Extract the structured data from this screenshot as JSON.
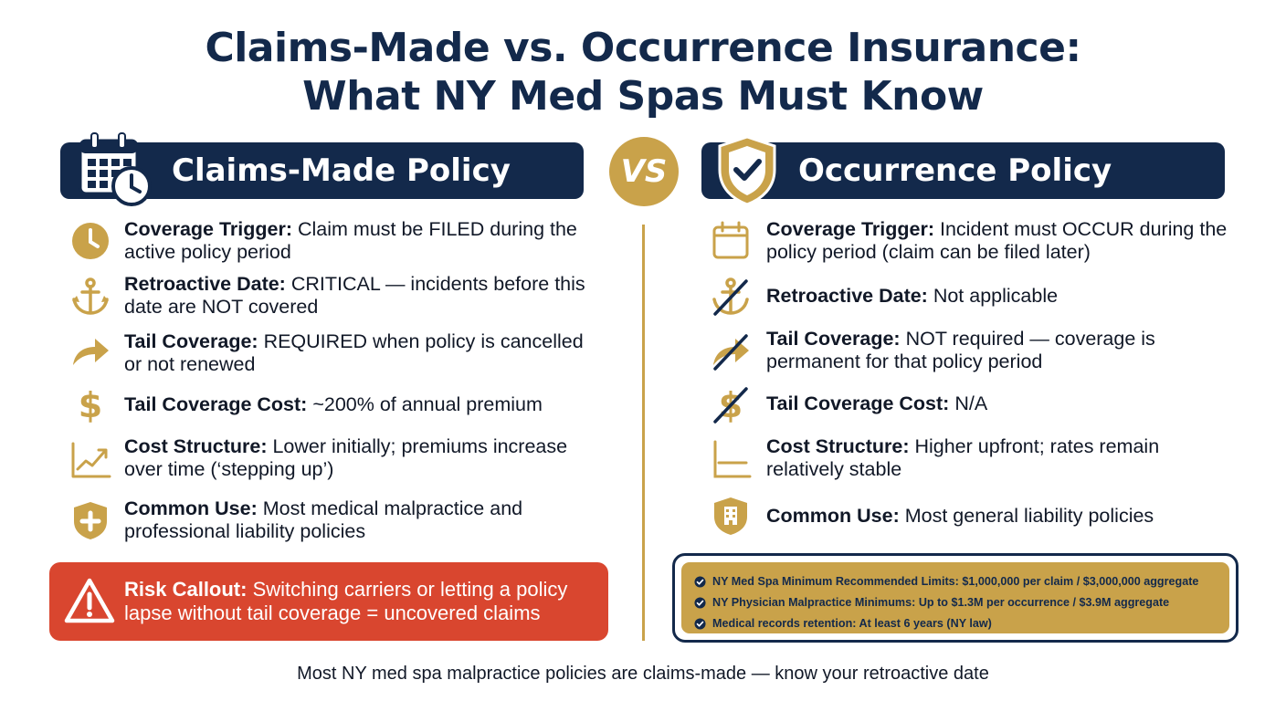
{
  "title": {
    "line1": "Claims-Made vs. Occurrence Insurance:",
    "line2": "What NY Med Spas Must Know"
  },
  "vs_label": "VS",
  "left": {
    "header": "Claims-Made Policy",
    "header_icon": "calendar-clock-icon",
    "items": [
      {
        "label": "Coverage Trigger:",
        "text": "Claim must be FILED during the active policy period",
        "icon": "clock-icon"
      },
      {
        "label": "Retroactive Date:",
        "text": "CRITICAL — incidents before this date are NOT covered",
        "icon": "anchor-icon"
      },
      {
        "label": "Tail Coverage:",
        "text": "REQUIRED when policy is cancelled or not renewed",
        "icon": "arrow-forward-icon"
      },
      {
        "label": "Tail Coverage Cost:",
        "text": "~200% of annual premium",
        "icon": "dollar-icon"
      },
      {
        "label": "Cost Structure:",
        "text": "Lower initially; premiums increase over time (‘stepping up’)",
        "icon": "rising-chart-icon"
      },
      {
        "label": "Common Use:",
        "text": "Most medical malpractice and professional liability policies",
        "icon": "medical-shield-icon"
      }
    ],
    "risk": {
      "label": "Risk Callout:",
      "text": "Switching carriers or letting a policy lapse without tail coverage = uncovered claims",
      "icon": "warning-icon"
    }
  },
  "right": {
    "header": "Occurrence Policy",
    "header_icon": "shield-check-icon",
    "items": [
      {
        "label": "Coverage Trigger:",
        "text": "Incident must OCCUR during the policy period (claim can be filed later)",
        "icon": "calendar-icon"
      },
      {
        "label": "Retroactive Date:",
        "text": "Not applicable",
        "icon": "anchor-crossed-icon"
      },
      {
        "label": "Tail Coverage:",
        "text": "NOT required — coverage is permanent for that policy period",
        "icon": "arrow-crossed-icon"
      },
      {
        "label": "Tail Coverage Cost:",
        "text": "N/A",
        "icon": "dollar-crossed-icon"
      },
      {
        "label": "Cost Structure:",
        "text": "Higher upfront; rates remain relatively stable",
        "icon": "flat-chart-icon"
      },
      {
        "label": "Common Use:",
        "text": "Most general liability policies",
        "icon": "building-shield-icon"
      }
    ],
    "limits": [
      "NY Med Spa Minimum Recommended Limits: $1,000,000 per claim / $3,000,000 aggregate",
      "NY Physician Malpractice Minimums: Up to $1.3M per occurrence / $3.9M aggregate",
      "Medical records retention: At least 6 years (NY law)"
    ]
  },
  "footer": "Most NY med spa malpractice policies are claims-made — know your retroactive date",
  "colors": {
    "navy": "#13294b",
    "gold": "#c9a24a",
    "risk_red": "#d9462f"
  }
}
